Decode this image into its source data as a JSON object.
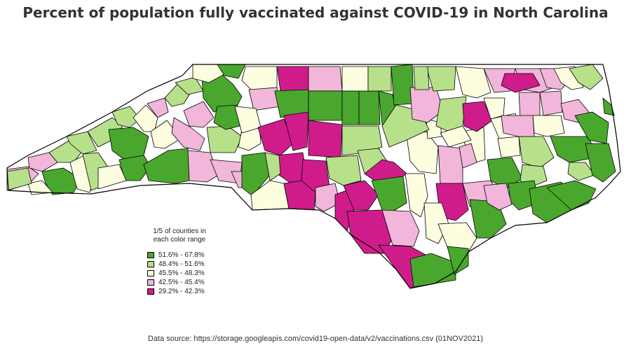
{
  "title": "Percent of population fully vaccinated against COVID-19 in North Carolina",
  "legend": {
    "title_line1": "1/5 of counties in",
    "title_line2": "each color range",
    "items": [
      {
        "label": "51.6% - 67.8%",
        "color": "#4aa72d"
      },
      {
        "label": "48.4% - 51.6%",
        "color": "#b7e08a"
      },
      {
        "label": "45.5% - 48.3%",
        "color": "#fdfde0"
      },
      {
        "label": "42.5% - 45.4%",
        "color": "#f1b6da"
      },
      {
        "label": "29.2% - 42.3%",
        "color": "#d01c8b"
      }
    ]
  },
  "source": "Data source: https://storage.googleapis.com/covid19-open-data/v2/vaccinations.csv (01NOV2021)"
}
